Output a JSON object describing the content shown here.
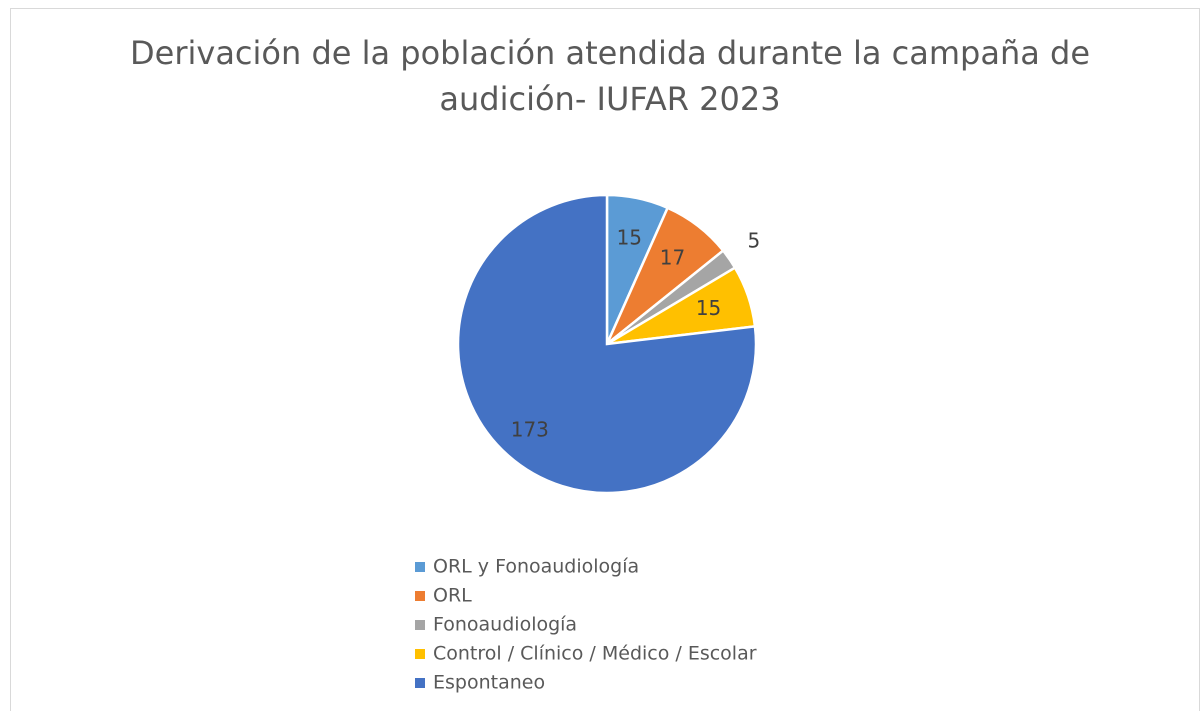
{
  "chart_data": {
    "type": "pie",
    "title": "Derivación de la población atendida durante la campaña de audición- IUFAR 2023",
    "categories": [
      "ORL y Fonoaudiología",
      "ORL",
      "Fonoaudiología",
      "Control / Clínico / Médico / Escolar",
      "Espontaneo"
    ],
    "values": [
      15,
      17,
      5,
      15,
      173
    ],
    "colors": [
      "#5b9bd5",
      "#ed7d31",
      "#a5a5a5",
      "#ffc000",
      "#4472c4"
    ],
    "legend": "bottom"
  }
}
